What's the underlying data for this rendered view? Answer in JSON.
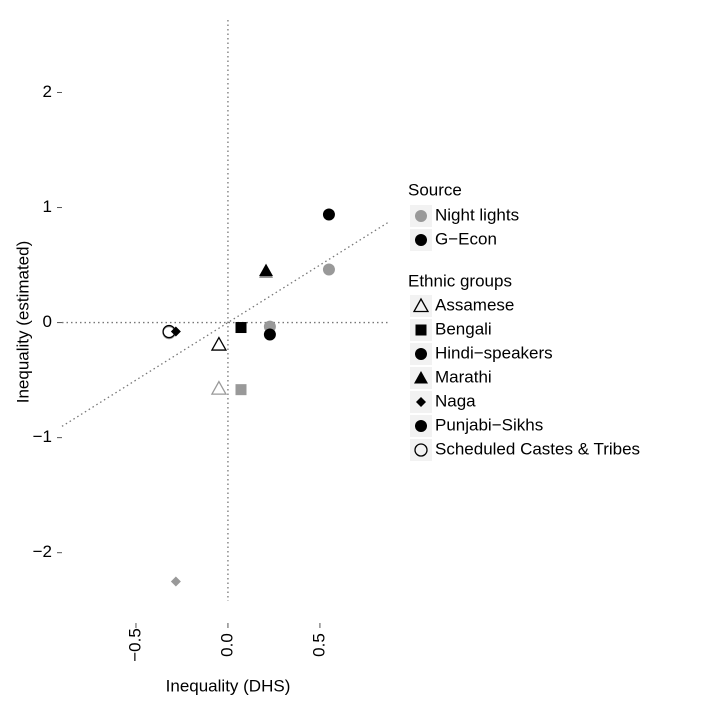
{
  "chart_data": {
    "type": "scatter",
    "x_label": "Inequality (DHS)",
    "y_label": "Inequality (estimated)",
    "xlim": [
      -0.902,
      0.87
    ],
    "ylim": [
      -2.42,
      2.63
    ],
    "xticks": [
      {
        "value": -0.5,
        "label": "−0.5"
      },
      {
        "value": 0,
        "label": "0.0"
      },
      {
        "value": 0.5,
        "label": "0.5"
      }
    ],
    "yticks": [
      {
        "value": -2,
        "label": "−2"
      },
      {
        "value": -1,
        "label": "−1"
      },
      0,
      1,
      2
    ],
    "legend_title": "Source",
    "series": [
      {
        "name": "Night lights",
        "color": "#999999",
        "x": [
          -0.049,
          0.071,
          0.228,
          0.207,
          -0.283,
          0.549,
          -0.32
        ],
        "values": [
          -0.574,
          -0.583,
          -0.035,
          0.435,
          -2.25,
          0.461,
          -0.087
        ]
      },
      {
        "name": "G−Econ",
        "color": "#000000",
        "x": [
          -0.049,
          0.071,
          0.228,
          0.207,
          -0.283,
          0.549,
          -0.32
        ],
        "values": [
          -0.191,
          -0.043,
          -0.104,
          0.452,
          -0.078,
          0.939,
          -0.078
        ]
      }
    ],
    "groups": {
      "title": "Ethnic groups",
      "names": [
        "Assamese",
        "Bengali",
        "Hindi−speakers",
        "Marathi",
        "Naga",
        "Punjabi−Sikhs",
        "Scheduled Castes & Tribes"
      ],
      "shapes": [
        "triangle-open",
        "square",
        "circle",
        "triangle",
        "diamond",
        "circle",
        "circle-open"
      ]
    }
  }
}
